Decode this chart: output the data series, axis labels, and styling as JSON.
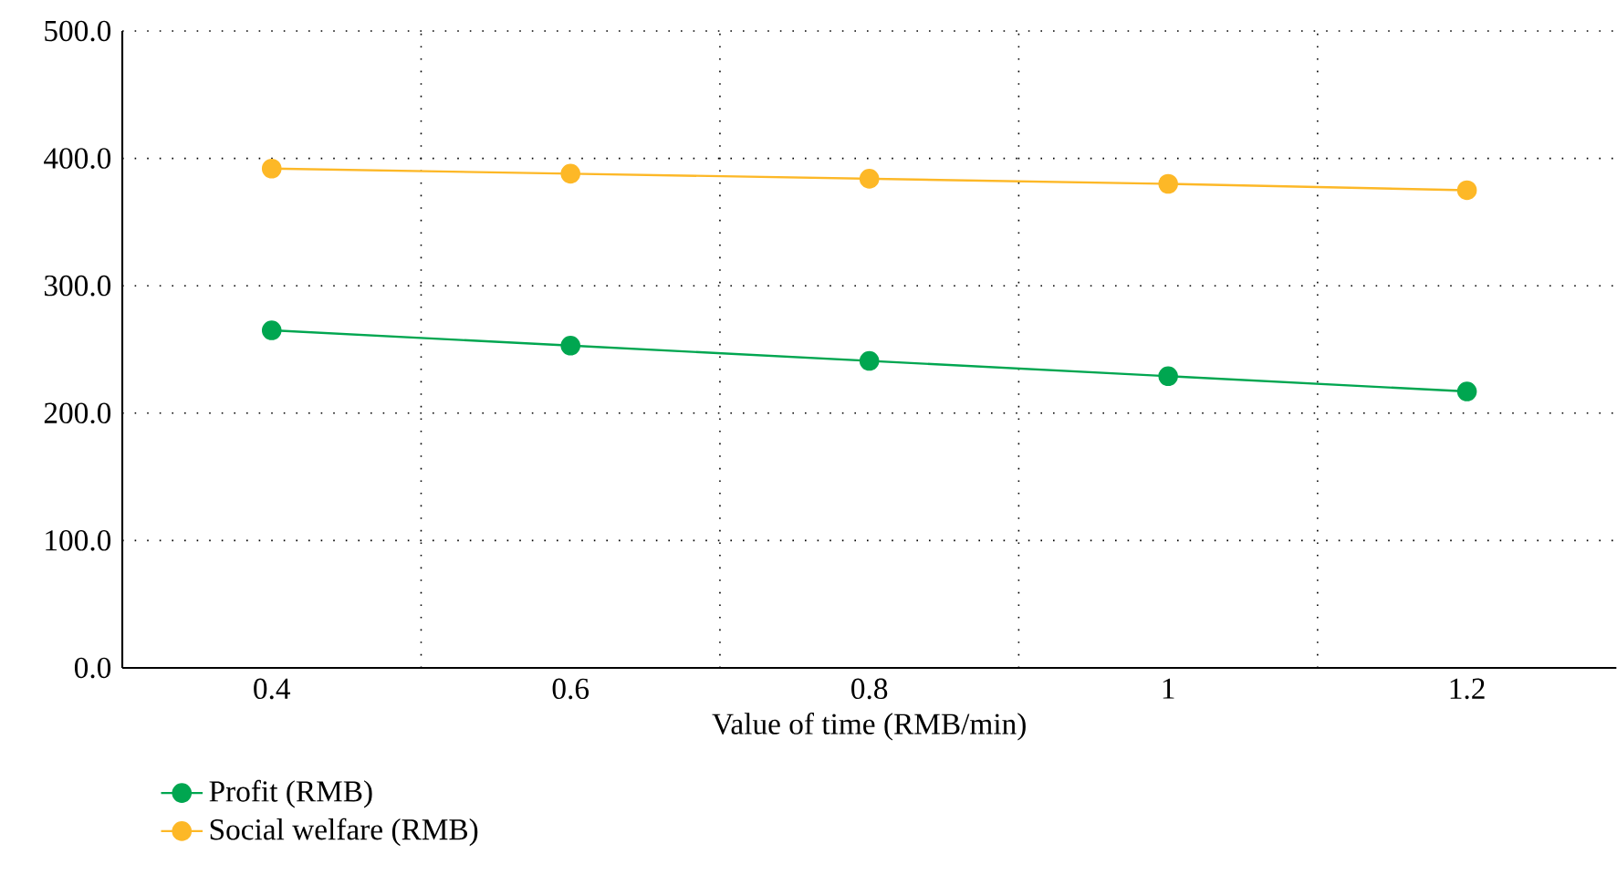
{
  "chart_data": {
    "type": "line",
    "xlabel": "Value of time (RMB/min)",
    "categories": [
      "0.4",
      "0.6",
      "0.8",
      "1",
      "1.2"
    ],
    "series": [
      {
        "name": "Profit (RMB)",
        "color": "#00a650",
        "values": [
          265,
          253,
          241,
          229,
          217
        ]
      },
      {
        "name": "Social welfare (RMB)",
        "color": "#fdb827",
        "values": [
          392,
          388,
          384,
          380,
          375
        ]
      }
    ],
    "ylim": [
      0,
      500
    ],
    "yticks": [
      {
        "value": 0,
        "label": "0.0"
      },
      {
        "value": 100,
        "label": "100.0"
      },
      {
        "value": 200,
        "label": "200.0"
      },
      {
        "value": 300,
        "label": "300.0"
      },
      {
        "value": 400,
        "label": "400.0"
      },
      {
        "value": 500,
        "label": "500.0"
      }
    ],
    "grid": true,
    "legend": "bottom left",
    "marker": "circle",
    "line_style": "solid"
  }
}
